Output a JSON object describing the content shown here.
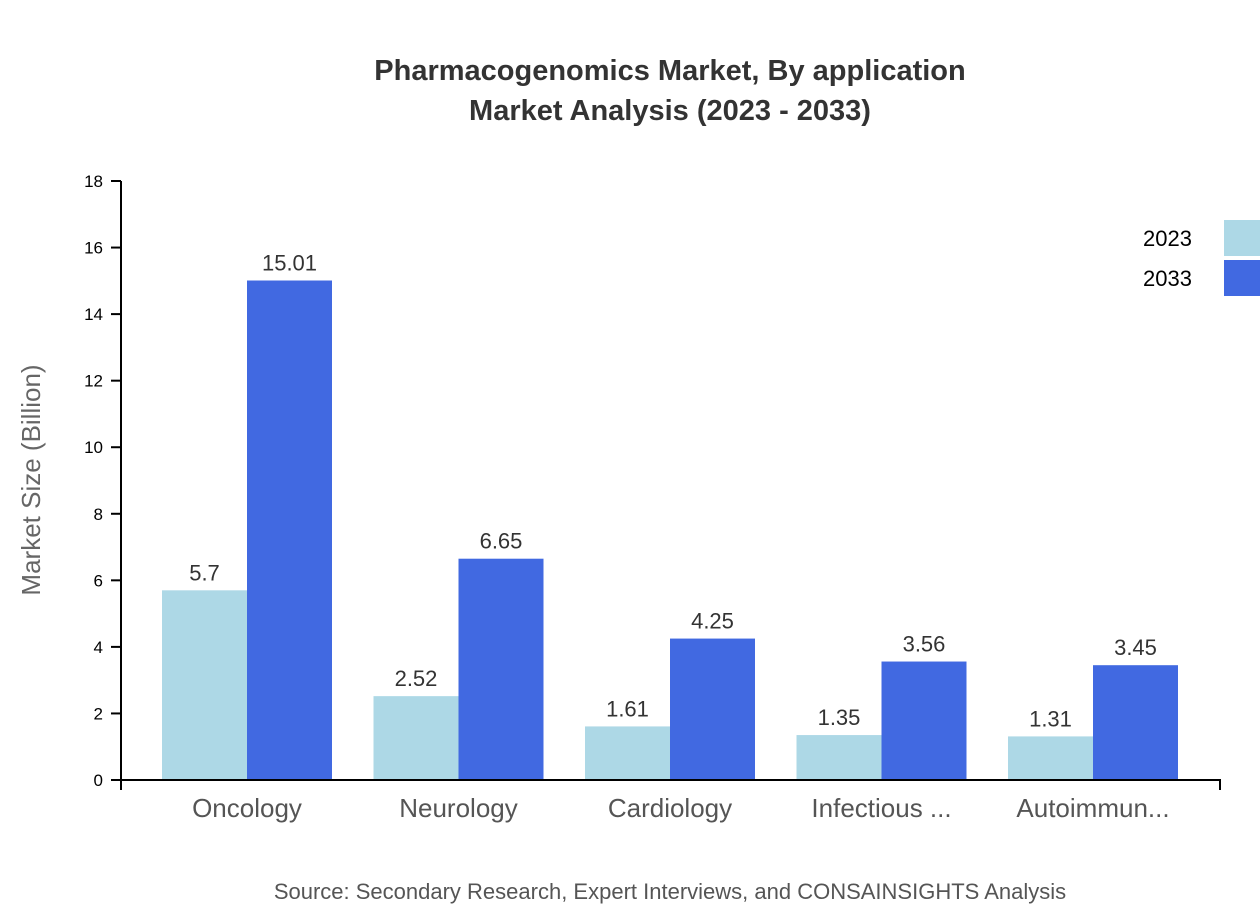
{
  "chart_data": {
    "type": "bar",
    "title": "Pharmacogenomics Market, By application",
    "subtitle": "Market Analysis (2023 - 2033)",
    "xlabel": "",
    "ylabel": "Market Size (Billion)",
    "ylim": [
      0,
      18
    ],
    "yticks": [
      0,
      2,
      4,
      6,
      8,
      10,
      12,
      14,
      16,
      18
    ],
    "categories": [
      "Oncology",
      "Neurology",
      "Cardiology",
      "Infectious ...",
      "Autoimmun..."
    ],
    "series": [
      {
        "name": "2023",
        "color": "#ADD8E6",
        "values": [
          5.7,
          2.52,
          1.61,
          1.35,
          1.31
        ],
        "labels": [
          "5.7",
          "2.52",
          "1.61",
          "1.35",
          "1.31"
        ]
      },
      {
        "name": "2033",
        "color": "#4169E1",
        "values": [
          15.01,
          6.65,
          4.25,
          3.56,
          3.45
        ],
        "labels": [
          "15.01",
          "6.65",
          "4.25",
          "3.56",
          "3.45"
        ]
      }
    ],
    "legend_position": "top-right",
    "grid": false,
    "source": "Source: Secondary Research, Expert Interviews, and CONSAINSIGHTS Analysis"
  }
}
